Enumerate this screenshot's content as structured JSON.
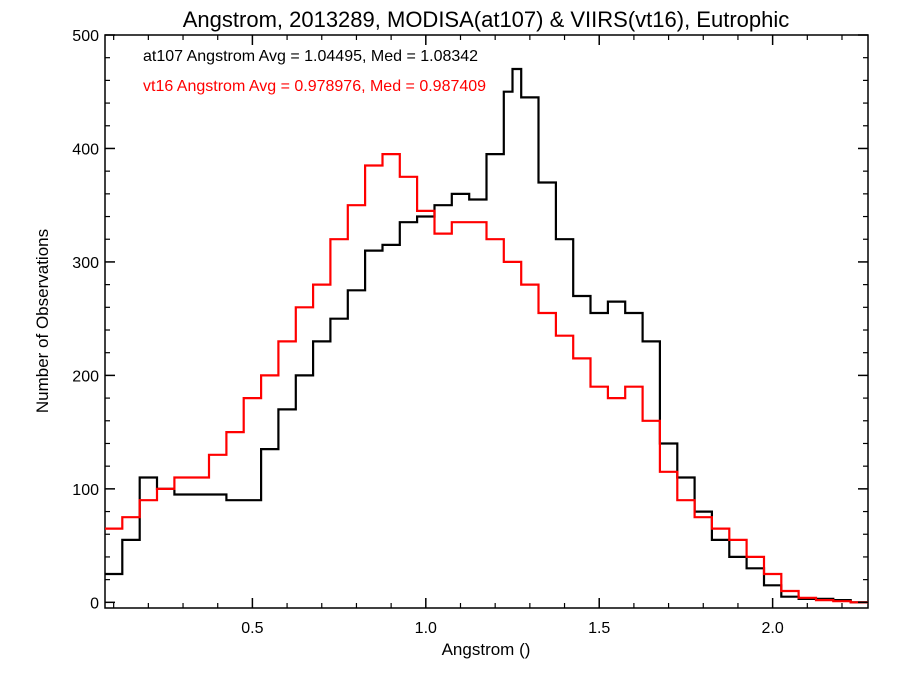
{
  "chart_data": {
    "type": "line",
    "title": "Angstrom, 2013289, MODISA(at107) & VIIRS(vt16), Eutrophic",
    "xlabel": "Angstrom ()",
    "ylabel": "Number of Observations",
    "xlim": [
      0.075,
      2.275
    ],
    "ylim": [
      -5,
      500
    ],
    "xticks": [
      0.5,
      1.0,
      1.5,
      2.0
    ],
    "xtick_labels": [
      "0.5",
      "1.0",
      "1.5",
      "2.0"
    ],
    "yticks": [
      0,
      100,
      200,
      300,
      400,
      500
    ],
    "ytick_labels": [
      "0",
      "100",
      "200",
      "300",
      "400",
      "500"
    ],
    "grid": false,
    "step": "histogram",
    "annotations": [
      {
        "text": "at107 Angstrom Avg = 1.04495, Med = 1.08342",
        "color": "#000000"
      },
      {
        "text": "vt16 Angstrom Avg = 0.978976, Med = 0.987409",
        "color": "#ff0000"
      }
    ],
    "series": [
      {
        "color": "#000000",
        "x": [
          0.075,
          0.125,
          0.175,
          0.225,
          0.275,
          0.325,
          0.375,
          0.425,
          0.475,
          0.525,
          0.575,
          0.625,
          0.675,
          0.725,
          0.775,
          0.825,
          0.875,
          0.925,
          0.975,
          1.025,
          1.075,
          1.125,
          1.175,
          1.225,
          1.25,
          1.275,
          1.325,
          1.375,
          1.425,
          1.475,
          1.525,
          1.575,
          1.625,
          1.675,
          1.725,
          1.775,
          1.825,
          1.875,
          1.925,
          1.975,
          2.025,
          2.075,
          2.125,
          2.175,
          2.225,
          2.275
        ],
        "y": [
          25,
          55,
          110,
          100,
          95,
          95,
          95,
          90,
          90,
          135,
          170,
          200,
          230,
          250,
          275,
          310,
          315,
          335,
          340,
          350,
          360,
          355,
          395,
          450,
          470,
          445,
          370,
          320,
          270,
          255,
          265,
          255,
          230,
          140,
          110,
          80,
          55,
          40,
          30,
          15,
          5,
          3,
          3,
          2,
          0,
          0
        ]
      },
      {
        "color": "#ff0000",
        "x": [
          0.075,
          0.125,
          0.175,
          0.225,
          0.275,
          0.325,
          0.375,
          0.425,
          0.475,
          0.525,
          0.575,
          0.625,
          0.675,
          0.725,
          0.775,
          0.825,
          0.875,
          0.925,
          0.975,
          1.025,
          1.075,
          1.125,
          1.175,
          1.225,
          1.275,
          1.325,
          1.375,
          1.425,
          1.475,
          1.525,
          1.575,
          1.625,
          1.675,
          1.725,
          1.775,
          1.825,
          1.875,
          1.925,
          1.975,
          2.025,
          2.075,
          2.125,
          2.175,
          2.225,
          2.275
        ],
        "y": [
          65,
          75,
          90,
          100,
          110,
          110,
          130,
          150,
          180,
          200,
          230,
          260,
          280,
          320,
          350,
          385,
          395,
          375,
          345,
          325,
          335,
          335,
          320,
          300,
          280,
          255,
          235,
          215,
          190,
          180,
          190,
          160,
          115,
          90,
          75,
          65,
          55,
          40,
          25,
          10,
          4,
          2,
          1,
          0,
          0
        ]
      }
    ]
  }
}
